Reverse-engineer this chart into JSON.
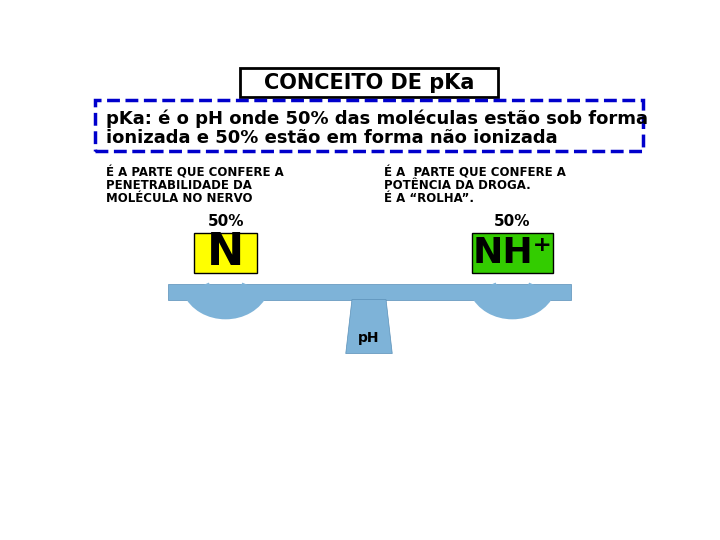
{
  "title": "CONCEITO DE pKa",
  "subtitle_line1": "pKa: é o pH onde 50% das moléculas estão sob forma",
  "subtitle_line2": "ionizada e 50% estão em forma não ionizada",
  "left_label_lines": [
    "É A PARTE QUE CONFERE A",
    "PENETRABILIDADE DA",
    "MOLÉCULA NO NERVO"
  ],
  "right_label_lines": [
    "É A  PARTE QUE CONFERE A",
    "POTÊNCIA DA DROGA.",
    "É A “ROLHA”."
  ],
  "left_box_text": "N",
  "right_box_text": "NH⁺",
  "left_box_color": "#FFFF00",
  "right_box_color": "#33CC00",
  "percent_label": "50%",
  "pivot_label": "pH",
  "beam_color": "#7EB3D8",
  "cup_color": "#7EB3D8",
  "pivot_color": "#7EB3D8",
  "background_color": "#FFFFFF",
  "subtitle_box_border": "#0000CC",
  "text_color": "#000000"
}
